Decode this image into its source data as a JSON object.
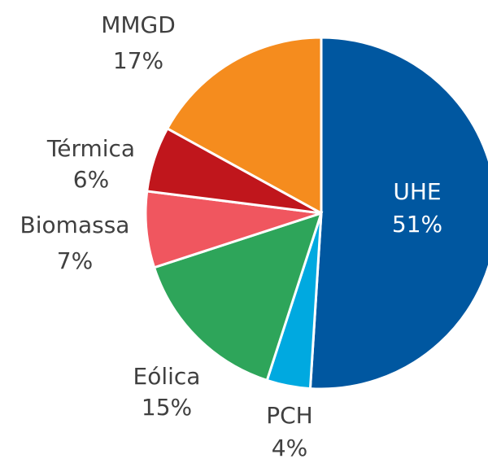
{
  "chart_data": {
    "type": "pie",
    "categories": [
      "UHE",
      "PCH",
      "Eólica",
      "Biomassa",
      "Térmica",
      "MMGD"
    ],
    "values": [
      51,
      4,
      15,
      7,
      6,
      17
    ],
    "value_labels": [
      "51%",
      "4%",
      "15%",
      "7%",
      "6%",
      "17%"
    ],
    "colors": [
      "#0057a0",
      "#00a9e0",
      "#2ea55a",
      "#f0565f",
      "#c0161c",
      "#f58c1e"
    ]
  }
}
